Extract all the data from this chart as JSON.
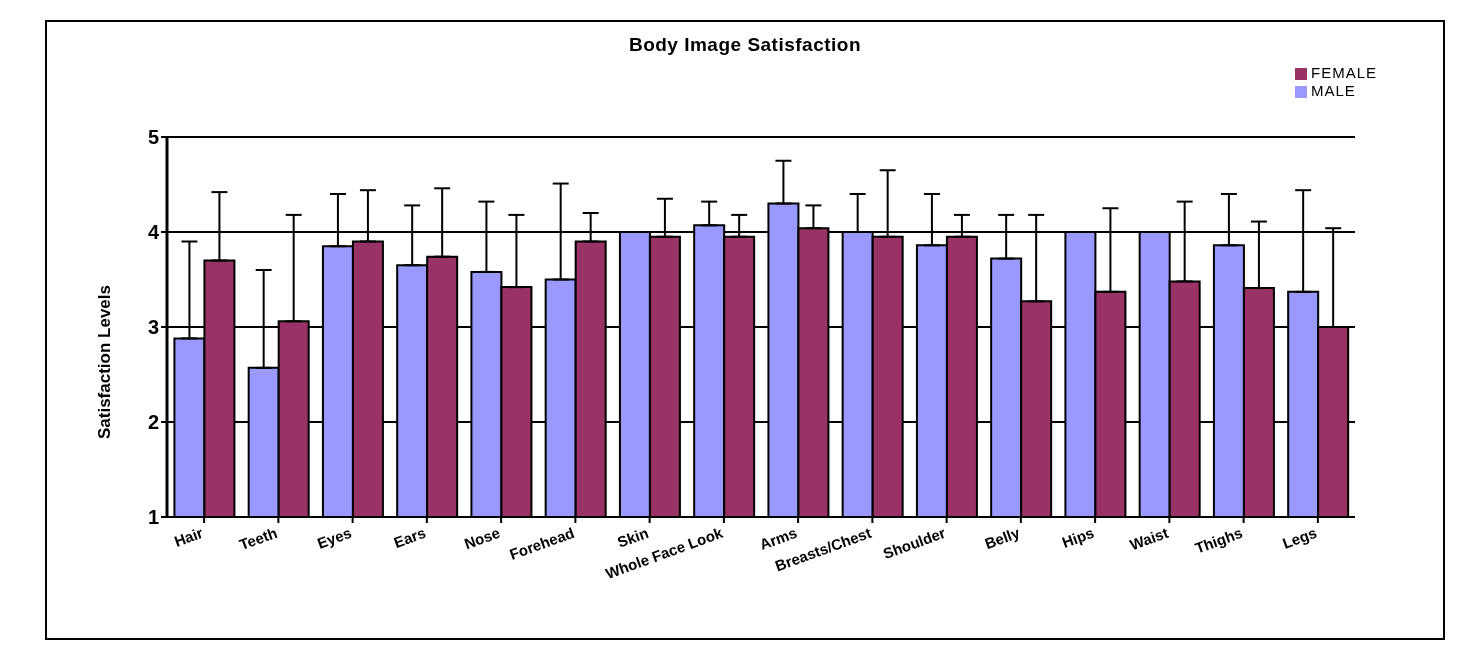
{
  "chart_data": {
    "type": "bar",
    "title": "Body Image Satisfaction",
    "ylabel": "Satisfaction Levels",
    "categories": [
      "Hair",
      "Teeth",
      "Eyes",
      "Ears",
      "Nose",
      "Forehead",
      "Skin",
      "Whole Face Look",
      "Arms",
      "Breasts/Chest",
      "Shoulder",
      "Belly",
      "Hips",
      "Waist",
      "Thighs",
      "Legs"
    ],
    "series": [
      {
        "name": "MALE",
        "color": "#9999ff",
        "values": [
          2.88,
          2.57,
          3.85,
          3.65,
          3.58,
          3.5,
          4.0,
          4.07,
          4.3,
          4.0,
          3.86,
          3.72,
          4.0,
          4.0,
          3.86,
          3.37
        ],
        "errors": [
          [
            2.88,
            3.9
          ],
          [
            2.57,
            3.6
          ],
          [
            3.85,
            4.4
          ],
          [
            3.65,
            4.28
          ],
          [
            3.58,
            4.32
          ],
          [
            3.5,
            4.51
          ],
          null,
          [
            4.07,
            4.32
          ],
          [
            4.3,
            4.75
          ],
          [
            4.0,
            4.4
          ],
          [
            3.86,
            4.4
          ],
          [
            3.72,
            4.18
          ],
          null,
          null,
          [
            3.86,
            4.4
          ],
          [
            3.37,
            4.44
          ]
        ]
      },
      {
        "name": "FEMALE",
        "color": "#993366",
        "values": [
          3.7,
          3.06,
          3.9,
          3.74,
          3.42,
          3.9,
          3.95,
          3.95,
          4.04,
          3.95,
          3.95,
          3.27,
          3.37,
          3.48,
          3.41,
          3.0
        ],
        "errors": [
          [
            3.7,
            4.42
          ],
          [
            3.06,
            4.18
          ],
          [
            3.9,
            4.44
          ],
          [
            3.74,
            4.46
          ],
          [
            3.42,
            4.18
          ],
          [
            3.9,
            4.2
          ],
          [
            3.95,
            4.35
          ],
          [
            3.95,
            4.18
          ],
          [
            4.04,
            4.28
          ],
          [
            3.95,
            4.65
          ],
          [
            3.95,
            4.18
          ],
          [
            3.27,
            4.18
          ],
          [
            3.37,
            4.25
          ],
          [
            3.48,
            4.32
          ],
          [
            3.41,
            4.11
          ],
          [
            3.0,
            4.04
          ]
        ]
      }
    ],
    "ylim": [
      1,
      5
    ],
    "yticks": [
      1,
      2,
      3,
      4,
      5
    ],
    "grid": "y",
    "legend": "top right"
  }
}
